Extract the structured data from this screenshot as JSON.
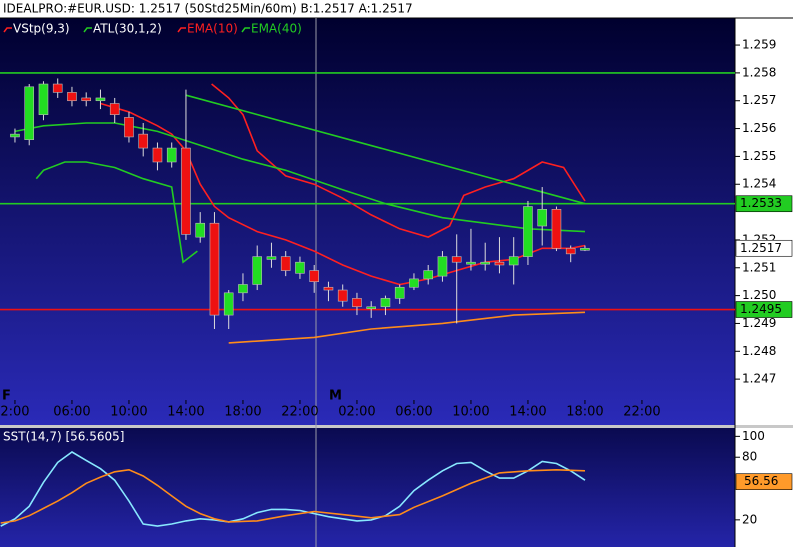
{
  "header": {
    "title": "IDEALPRO:#EUR.USD: 1.2517 (50Std25Min/60m)  B:1.2517 A:1.2517"
  },
  "chart_data": [
    {
      "type": "candlestick",
      "day_markers": [
        "F",
        "M"
      ],
      "xlim": [
        -1.05,
        50.53
      ],
      "xticks": [
        {
          "value": 0,
          "label": "2:00"
        },
        {
          "value": 4,
          "label": "06:00"
        },
        {
          "value": 8,
          "label": "10:00"
        },
        {
          "value": 12,
          "label": "14:00"
        },
        {
          "value": 16,
          "label": "18:00"
        },
        {
          "value": 20,
          "label": "22:00"
        },
        {
          "value": 24,
          "label": "02:00"
        },
        {
          "value": 28,
          "label": "06:00"
        },
        {
          "value": 32,
          "label": "10:00"
        },
        {
          "value": 36,
          "label": "14:00"
        },
        {
          "value": 40,
          "label": "18:00"
        },
        {
          "value": 44,
          "label": "22:00"
        }
      ],
      "ylim": [
        1.24625,
        1.2599
      ],
      "yticks": [
        1.259,
        1.258,
        1.257,
        1.256,
        1.255,
        1.254,
        1.252,
        1.251,
        {
          "value": 1.25,
          "label": "1.250"
        },
        1.249,
        1.248,
        1.247
      ],
      "up_color": "#22dd22",
      "down_color": "#ee1111",
      "candles": {
        "x": [
          0,
          1,
          2,
          3,
          4,
          5,
          6,
          7,
          8,
          9,
          10,
          11,
          12,
          13,
          14,
          15,
          16,
          17,
          18,
          19,
          20,
          21,
          22,
          23,
          24,
          25,
          26,
          27,
          28,
          29,
          30,
          31,
          32,
          33,
          34,
          35,
          36,
          37,
          38,
          39,
          40
        ],
        "open": [
          1.2557,
          1.2556,
          1.2565,
          1.2576,
          1.2573,
          1.2571,
          1.257,
          1.2569,
          1.2564,
          1.2558,
          1.2553,
          1.2548,
          1.2553,
          1.2521,
          1.2526,
          1.2493,
          1.2501,
          1.2504,
          1.2513,
          1.2514,
          1.2508,
          1.2509,
          1.2503,
          1.2502,
          1.2499,
          1.2496,
          1.2496,
          1.2499,
          1.2503,
          1.2506,
          1.2507,
          1.2514,
          1.2512,
          1.2512,
          1.2512,
          1.2511,
          1.2514,
          1.2525,
          1.2531,
          1.2517,
          1.2517
        ],
        "high": [
          1.256,
          1.2576,
          1.2577,
          1.2578,
          1.2575,
          1.2573,
          1.2574,
          1.2571,
          1.2566,
          1.2562,
          1.2555,
          1.2555,
          1.2574,
          1.253,
          1.253,
          1.2502,
          1.2508,
          1.2518,
          1.2519,
          1.2516,
          1.2514,
          1.2511,
          1.2505,
          1.2504,
          1.2501,
          1.2498,
          1.25,
          1.2504,
          1.2508,
          1.2511,
          1.2516,
          1.2522,
          1.2524,
          1.2519,
          1.2521,
          1.2521,
          1.2534,
          1.2539,
          1.2532,
          1.2518,
          1.2518
        ],
        "low": [
          1.2555,
          1.2554,
          1.2563,
          1.2571,
          1.2568,
          1.2568,
          1.2567,
          1.2562,
          1.2555,
          1.255,
          1.2545,
          1.2546,
          1.252,
          1.2519,
          1.2488,
          1.2488,
          1.2498,
          1.2502,
          1.251,
          1.2507,
          1.2506,
          1.2501,
          1.2498,
          1.2496,
          1.2493,
          1.2492,
          1.2493,
          1.2497,
          1.2502,
          1.2504,
          1.2505,
          1.249,
          1.2509,
          1.2509,
          1.2508,
          1.2504,
          1.2511,
          1.2518,
          1.2516,
          1.2512,
          1.2516
        ],
        "close": [
          1.2558,
          1.2575,
          1.2576,
          1.2573,
          1.257,
          1.257,
          1.2571,
          1.2565,
          1.2557,
          1.2553,
          1.2548,
          1.2553,
          1.2522,
          1.2526,
          1.2493,
          1.2501,
          1.2504,
          1.2514,
          1.2514,
          1.2509,
          1.2512,
          1.2505,
          1.2502,
          1.2498,
          1.2496,
          1.2496,
          1.2499,
          1.2503,
          1.2506,
          1.2509,
          1.2514,
          1.2512,
          1.2512,
          1.2512,
          1.2511,
          1.2514,
          1.2532,
          1.2531,
          1.2517,
          1.2515,
          1.2517
        ]
      },
      "series": [
        {
          "name": "VStp(9,3)",
          "color": "#ff2020",
          "label_color": "#ffffff",
          "piece_colors": [
            "#22cc22",
            "#ff2020"
          ],
          "x": [
            1.5,
            2,
            3.5,
            5,
            7,
            9,
            11,
            11.8,
            12.8,
            13.5,
            13.8,
            15,
            16,
            17,
            19,
            21,
            23,
            25,
            27,
            29,
            30.5,
            31.5,
            33,
            35,
            37,
            38.5,
            40
          ],
          "values": [
            1.2542,
            1.2545,
            1.2548,
            1.2548,
            1.2546,
            1.2542,
            1.2539,
            1.2512,
            1.2516,
            null,
            1.2576,
            1.2571,
            1.2565,
            1.2552,
            1.2543,
            1.254,
            1.2535,
            1.2529,
            1.2524,
            1.2521,
            1.2525,
            1.2536,
            1.2539,
            1.2542,
            1.2548,
            1.2546,
            1.2534
          ]
        },
        {
          "name": "ATL(30,1,2)",
          "color": "#22cc22",
          "label_color": "#ffffff",
          "x": [
            12,
            40
          ],
          "values": [
            1.2572,
            1.2533
          ],
          "lower_color": "#ff8c1a",
          "lower_x": [
            15,
            21,
            25,
            30,
            35,
            40
          ],
          "lower_values": [
            1.2483,
            1.2485,
            1.2488,
            1.249,
            1.2493,
            1.2494
          ]
        },
        {
          "name": "EMA(10)",
          "color": "#ff2020",
          "label_color": "#ff2020",
          "x": [
            6,
            8,
            10,
            11,
            12,
            13,
            14,
            15,
            17,
            19,
            21,
            23,
            25,
            27,
            29,
            31,
            33,
            35,
            37,
            39,
            40
          ],
          "values": [
            1.2569,
            1.2566,
            1.2561,
            1.2558,
            1.2552,
            1.254,
            1.2532,
            1.2528,
            1.2523,
            1.252,
            1.2516,
            1.2511,
            1.2507,
            1.2504,
            1.2506,
            1.2509,
            1.2512,
            1.2513,
            1.2517,
            1.2517,
            1.2518
          ]
        },
        {
          "name": "EMA(40)",
          "color": "#22cc22",
          "label_color": "#22cc22",
          "x": [
            0,
            2,
            5,
            7,
            10,
            13,
            16,
            19,
            23,
            26,
            30,
            33,
            36,
            40
          ],
          "values": [
            1.2559,
            1.2561,
            1.2562,
            1.2562,
            1.2559,
            1.2554,
            1.2549,
            1.2545,
            1.2538,
            1.2533,
            1.2528,
            1.2526,
            1.2524,
            1.2523
          ]
        }
      ],
      "hlines": [
        {
          "value": 1.258,
          "color": "#22cc22"
        },
        {
          "value": 1.2533,
          "color": "#22cc22"
        },
        {
          "value": 1.2495,
          "color": "#ee1111"
        }
      ],
      "price_labels": [
        {
          "value": 1.2533,
          "bg": "#22cc22"
        },
        {
          "value": 1.2517,
          "bg": "#ffffff"
        },
        {
          "value": 1.2495,
          "bg": "#22cc22"
        }
      ]
    },
    {
      "type": "line",
      "title": "SST(14,7)  [56.5605]",
      "xlim": [
        -1.05,
        50.53
      ],
      "ylim": [
        -6,
        108
      ],
      "yticks": [
        100,
        80,
        20
      ],
      "series": [
        {
          "color": "#88e8ff",
          "x": [
            -1,
            0,
            1,
            2,
            3,
            4,
            5,
            6,
            7,
            8,
            9,
            10,
            11,
            12,
            13,
            14,
            15,
            16,
            17,
            18,
            19,
            20,
            21,
            22,
            23,
            24,
            25,
            26,
            27,
            28,
            29,
            30,
            31,
            32,
            33,
            34,
            35,
            36,
            37,
            38,
            39,
            40
          ],
          "values": [
            14,
            21,
            33,
            56,
            75,
            85,
            77,
            69,
            58,
            38,
            16,
            14,
            16,
            19,
            21,
            20,
            18,
            21,
            27,
            30,
            30,
            29,
            26,
            23,
            21,
            19,
            20,
            24,
            33,
            48,
            58,
            67,
            74,
            75,
            67,
            60,
            60,
            67,
            76,
            74,
            67,
            58
          ]
        },
        {
          "color": "#ff8c1a",
          "x": [
            -1,
            0,
            1,
            2,
            3,
            4,
            5,
            6,
            7,
            8,
            9,
            10,
            11,
            12,
            13,
            14,
            15,
            17,
            19,
            21,
            23,
            25,
            27,
            28,
            30,
            32,
            34,
            36,
            38,
            40
          ],
          "values": [
            17,
            19,
            24,
            31,
            38,
            46,
            55,
            61,
            66,
            68,
            62,
            53,
            43,
            33,
            26,
            21,
            18,
            19,
            24,
            28,
            25,
            22,
            25,
            32,
            43,
            55,
            65,
            67,
            68,
            67
          ]
        }
      ],
      "price_labels": [
        {
          "value": 56.56,
          "bg": "#ff9a2a"
        }
      ]
    }
  ]
}
